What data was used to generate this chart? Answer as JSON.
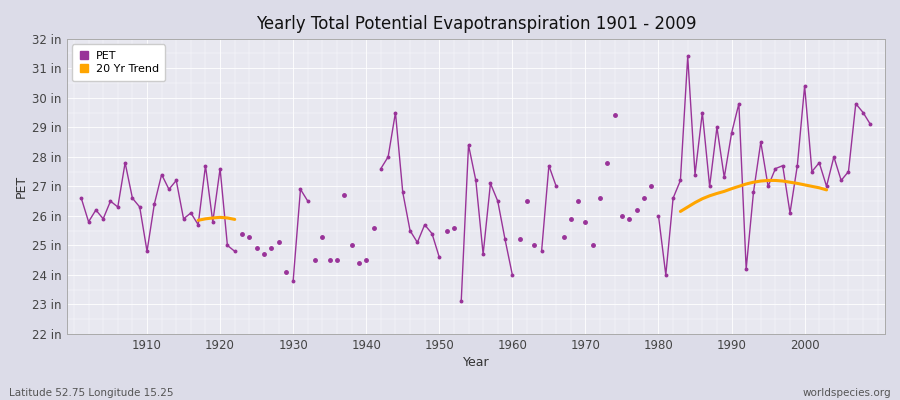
{
  "title": "Yearly Total Potential Evapotranspiration 1901 - 2009",
  "ylabel": "PET",
  "xlabel": "Year",
  "footer_left": "Latitude 52.75 Longitude 15.25",
  "footer_right": "worldspecies.org",
  "ylim": [
    22,
    32
  ],
  "xlim": [
    1899,
    2011
  ],
  "xticks": [
    1910,
    1920,
    1930,
    1940,
    1950,
    1960,
    1970,
    1980,
    1990,
    2000
  ],
  "yticks": [
    22,
    23,
    24,
    25,
    26,
    27,
    28,
    29,
    30,
    31,
    32
  ],
  "ytick_labels": [
    "22 in",
    "23 in",
    "24 in",
    "25 in",
    "26 in",
    "27 in",
    "28 in",
    "29 in",
    "30 in",
    "31 in",
    "32 in"
  ],
  "pet_color": "#993399",
  "trend_color": "#FFA500",
  "fig_bg_color": "#DCDCE8",
  "plot_bg_color": "#E8E8F0",
  "years": [
    1901,
    1902,
    1903,
    1904,
    1905,
    1906,
    1907,
    1908,
    1909,
    1910,
    1911,
    1912,
    1913,
    1914,
    1915,
    1916,
    1917,
    1918,
    1919,
    1920,
    1921,
    1922,
    1923,
    1924,
    1925,
    1926,
    1927,
    1928,
    1929,
    1930,
    1931,
    1932,
    1933,
    1934,
    1935,
    1936,
    1937,
    1938,
    1939,
    1940,
    1941,
    1942,
    1943,
    1944,
    1945,
    1946,
    1947,
    1948,
    1949,
    1950,
    1951,
    1952,
    1953,
    1954,
    1955,
    1956,
    1957,
    1958,
    1959,
    1960,
    1961,
    1962,
    1963,
    1964,
    1965,
    1966,
    1967,
    1968,
    1969,
    1970,
    1971,
    1972,
    1973,
    1974,
    1975,
    1976,
    1977,
    1978,
    1979,
    1980,
    1981,
    1982,
    1983,
    1984,
    1985,
    1986,
    1987,
    1988,
    1989,
    1990,
    1991,
    1992,
    1993,
    1994,
    1995,
    1996,
    1997,
    1998,
    1999,
    2000,
    2001,
    2002,
    2003,
    2004,
    2005,
    2006,
    2007,
    2008,
    2009
  ],
  "pet_values": [
    26.6,
    25.8,
    26.2,
    25.9,
    26.5,
    26.3,
    27.8,
    26.6,
    26.3,
    24.8,
    26.4,
    27.4,
    26.9,
    27.2,
    25.9,
    26.1,
    25.7,
    27.7,
    25.8,
    27.6,
    25.0,
    24.8,
    25.4,
    25.3,
    24.9,
    24.7,
    24.9,
    25.1,
    24.1,
    23.8,
    26.9,
    26.5,
    24.5,
    25.3,
    24.5,
    24.5,
    26.7,
    25.0,
    24.4,
    24.5,
    25.6,
    27.6,
    28.0,
    29.5,
    26.8,
    25.5,
    25.1,
    25.7,
    25.4,
    24.6,
    25.5,
    25.6,
    23.1,
    28.4,
    27.2,
    24.7,
    27.1,
    26.5,
    25.2,
    24.0,
    25.2,
    26.5,
    25.0,
    24.8,
    27.7,
    27.0,
    25.3,
    25.9,
    26.5,
    25.8,
    25.0,
    26.6,
    27.8,
    29.4,
    26.0,
    25.9,
    26.2,
    26.6,
    27.0,
    26.0,
    24.0,
    26.6,
    27.2,
    31.4,
    27.4,
    29.5,
    27.0,
    29.0,
    27.3,
    28.8,
    29.8,
    24.2,
    26.8,
    28.5,
    27.0,
    27.6,
    27.7,
    26.1,
    27.7,
    30.4,
    27.5,
    27.8,
    27.0,
    28.0,
    27.2,
    27.5,
    29.8,
    29.5,
    29.1
  ],
  "connected_segments": [
    [
      1901,
      1902,
      1903,
      1904,
      1905,
      1906,
      1907,
      1908,
      1909,
      1910,
      1911,
      1912,
      1913,
      1914,
      1915,
      1916,
      1917,
      1918,
      1919,
      1920,
      1921,
      1922
    ],
    [
      1930,
      1931,
      1932
    ],
    [
      1942,
      1943,
      1944,
      1945,
      1946,
      1947,
      1948,
      1949,
      1950
    ],
    [
      1953,
      1954,
      1955,
      1956,
      1957,
      1958,
      1959,
      1960
    ],
    [
      1964,
      1965,
      1966
    ],
    [
      1980,
      1981,
      1982,
      1983,
      1984,
      1985,
      1986,
      1987,
      1988,
      1989,
      1990,
      1991,
      1992,
      1993,
      1994,
      1995,
      1996,
      1997,
      1998,
      1999,
      2000,
      2001,
      2002,
      2003,
      2004,
      2005,
      2006,
      2007,
      2008,
      2009
    ]
  ],
  "isolated_years": [
    1923,
    1924,
    1925,
    1926,
    1927,
    1928,
    1929,
    1933,
    1934,
    1935,
    1936,
    1937,
    1938,
    1939,
    1940,
    1941,
    1951,
    1952,
    1961,
    1962,
    1963,
    1967,
    1968,
    1969,
    1970,
    1971,
    1972,
    1973,
    1974,
    1975,
    1976,
    1977,
    1978,
    1979
  ],
  "early_trend_years": [
    1917,
    1918,
    1919,
    1920,
    1921,
    1922
  ],
  "early_trend_vals": [
    25.85,
    25.9,
    25.93,
    25.95,
    25.93,
    25.88
  ],
  "late_trend_years": [
    1983,
    1984,
    1985,
    1986,
    1987,
    1988,
    1989,
    1990,
    1991,
    1992,
    1993,
    1994,
    1995,
    1996,
    1997,
    1998,
    1999,
    2000,
    2001,
    2002,
    2003
  ],
  "late_trend_vals": [
    26.15,
    26.3,
    26.45,
    26.58,
    26.68,
    26.76,
    26.83,
    26.92,
    27.0,
    27.08,
    27.14,
    27.18,
    27.2,
    27.2,
    27.18,
    27.14,
    27.1,
    27.05,
    27.0,
    26.95,
    26.88
  ]
}
